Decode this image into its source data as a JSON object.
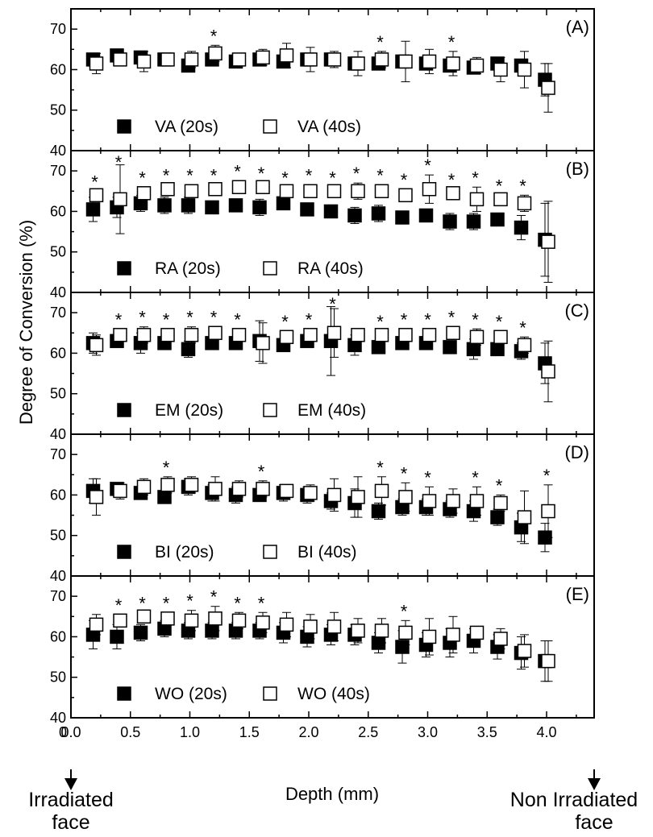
{
  "chart_data": {
    "type": "scatter",
    "ylabel": "Degree of Conversion (%)",
    "xlabel": "Depth (mm)",
    "xlim": [
      0,
      4.4
    ],
    "ylim": [
      40,
      75
    ],
    "x_ticks": [
      "0.0",
      "0.5",
      "1.0",
      "1.5",
      "2.0",
      "2.5",
      "3.0",
      "3.5",
      "4.0"
    ],
    "y_ticks": [
      "40",
      "50",
      "60",
      "70"
    ],
    "x_positions": [
      0.2,
      0.4,
      0.6,
      0.8,
      1.0,
      1.2,
      1.4,
      1.6,
      1.8,
      2.0,
      2.2,
      2.4,
      2.6,
      2.8,
      3.0,
      3.2,
      3.4,
      3.6,
      3.8,
      4.0
    ],
    "annotations": {
      "significance_marker": "*",
      "left_arrow_label": [
        "Irradiated",
        "face"
      ],
      "right_arrow_label": [
        "Non Irradiated",
        "face"
      ]
    },
    "panels": [
      {
        "label": "(A)",
        "series": [
          {
            "name": "VA (20s)",
            "marker": "filled-square",
            "values": [
              62.5,
              63.5,
              63,
              62.5,
              61,
              62.5,
              62,
              62.5,
              62,
              62.5,
              62.5,
              61.5,
              61.5,
              62,
              61.5,
              61,
              60.5,
              61.5,
              61,
              57.5
            ],
            "errors": [
              1.0,
              0.5,
              1.5,
              1.0,
              1.5,
              1.0,
              0.8,
              1.0,
              0.8,
              1.0,
              1.0,
              1.5,
              1.5,
              1.0,
              1.5,
              1.0,
              1.0,
              1.0,
              1.0,
              4.0
            ]
          },
          {
            "name": "VA (40s)",
            "marker": "open-square",
            "values": [
              61.5,
              62.5,
              62,
              62.5,
              62.5,
              64,
              62.5,
              63,
              63.5,
              62.5,
              62.5,
              61.5,
              62.5,
              62,
              62,
              61.5,
              61,
              60,
              60,
              55.5
            ],
            "errors": [
              2.5,
              1.5,
              2.5,
              1.5,
              2.0,
              2.0,
              1.0,
              2.0,
              3.0,
              3.0,
              2.0,
              3.0,
              2.0,
              5.0,
              3.0,
              3.0,
              2.0,
              3.0,
              4.5,
              6.0
            ]
          }
        ],
        "significant_x": [
          1.2,
          2.6,
          3.2
        ]
      },
      {
        "label": "(B)",
        "series": [
          {
            "name": "RA (20s)",
            "marker": "filled-square",
            "values": [
              60.5,
              61,
              62,
              61.5,
              61.5,
              61,
              61.5,
              61,
              62,
              60.5,
              60,
              59,
              59.5,
              58.5,
              59,
              57.5,
              57.5,
              58,
              56,
              53
            ],
            "errors": [
              3.0,
              2.5,
              2.0,
              2.0,
              2.0,
              1.0,
              1.5,
              2.0,
              1.0,
              1.0,
              1.0,
              2.0,
              2.0,
              1.0,
              1.0,
              2.0,
              2.0,
              1.5,
              3.0,
              9.0
            ]
          },
          {
            "name": "RA (40s)",
            "marker": "open-square",
            "values": [
              64,
              63,
              64.5,
              65.5,
              65,
              65.5,
              66,
              66,
              65,
              65,
              65,
              65,
              65,
              64,
              65.5,
              64.5,
              63,
              63,
              62,
              52.5
            ],
            "errors": [
              1.0,
              8.5,
              1.5,
              1.0,
              1.5,
              1.0,
              1.5,
              1.0,
              1.0,
              1.5,
              1.0,
              2.0,
              1.5,
              1.5,
              3.5,
              1.0,
              3.0,
              1.0,
              2.0,
              10.0
            ]
          }
        ],
        "significant_x": [
          0.2,
          0.4,
          0.6,
          0.8,
          1.0,
          1.2,
          1.4,
          1.6,
          1.8,
          2.0,
          2.2,
          2.4,
          2.6,
          2.8,
          3.0,
          3.2,
          3.4,
          3.6,
          3.8
        ]
      },
      {
        "label": "(C)",
        "series": [
          {
            "name": "EM (20s)",
            "marker": "filled-square",
            "values": [
              62.5,
              63,
              62.5,
              62.5,
              61,
              62.5,
              62.5,
              63,
              62,
              63,
              63,
              62,
              61.5,
              62.5,
              62.5,
              61.5,
              61,
              61,
              60.5,
              57.5
            ],
            "errors": [
              2.5,
              1.5,
              2.5,
              1.5,
              2.0,
              1.5,
              1.5,
              5.0,
              1.0,
              1.5,
              8.5,
              2.5,
              1.5,
              1.0,
              1.0,
              1.0,
              2.5,
              1.0,
              2.0,
              5.0
            ]
          },
          {
            "name": "EM (40s)",
            "marker": "open-square",
            "values": [
              62,
              64.5,
              64.5,
              64.5,
              64.5,
              65,
              64.5,
              62.5,
              64,
              64.5,
              65,
              64.5,
              64.5,
              64.5,
              64.5,
              65,
              64,
              64,
              62,
              55.5
            ],
            "errors": [
              2.5,
              1.5,
              2.0,
              1.5,
              2.0,
              1.5,
              1.5,
              5.0,
              1.5,
              1.5,
              6.0,
              1.5,
              1.0,
              1.5,
              1.5,
              1.5,
              2.0,
              1.5,
              2.0,
              7.5
            ]
          }
        ],
        "significant_x": [
          0.4,
          0.6,
          0.8,
          1.0,
          1.2,
          1.4,
          1.8,
          2.0,
          2.2,
          2.6,
          2.8,
          3.0,
          3.2,
          3.4,
          3.6,
          3.8
        ]
      },
      {
        "label": "(D)",
        "series": [
          {
            "name": "BI (20s)",
            "marker": "filled-square",
            "values": [
              61,
              61.5,
              60.5,
              59.5,
              62,
              60.5,
              60,
              60,
              60.5,
              60,
              58.5,
              58,
              56,
              57,
              57,
              56.5,
              56,
              54.5,
              52,
              49.5
            ],
            "errors": [
              3.0,
              1.5,
              1.5,
              1.5,
              2.0,
              2.0,
              2.0,
              1.0,
              2.0,
              2.0,
              2.0,
              3.5,
              2.0,
              2.0,
              2.0,
              2.0,
              2.5,
              2.0,
              3.5,
              3.5
            ]
          },
          {
            "name": "BI (40s)",
            "marker": "open-square",
            "values": [
              59.5,
              61,
              62,
              62.5,
              62.5,
              61.5,
              61.5,
              61.5,
              61,
              60.5,
              60,
              59.5,
              61,
              59.5,
              58.5,
              58.5,
              58.5,
              58,
              54.5,
              56
            ],
            "errors": [
              4.5,
              2.0,
              2.0,
              2.0,
              2.0,
              3.0,
              2.0,
              2.0,
              1.5,
              2.0,
              4.0,
              5.0,
              3.5,
              3.5,
              3.5,
              3.0,
              3.5,
              2.0,
              6.5,
              6.5
            ]
          }
        ],
        "significant_x": [
          0.8,
          1.6,
          2.6,
          2.8,
          3.0,
          3.4,
          3.6,
          4.0
        ]
      },
      {
        "label": "(E)",
        "series": [
          {
            "name": "WO (20s)",
            "marker": "filled-square",
            "values": [
              60.5,
              60,
              61,
              62,
              61.5,
              61.5,
              61.5,
              61.5,
              61,
              60,
              60.5,
              60.5,
              58.5,
              57.5,
              58,
              58.5,
              59,
              57.5,
              56,
              54
            ],
            "errors": [
              3.5,
              3.0,
              2.0,
              2.0,
              2.0,
              2.0,
              2.0,
              2.0,
              2.5,
              2.5,
              2.5,
              2.5,
              2.5,
              4.0,
              3.0,
              3.5,
              3.0,
              3.0,
              4.0,
              5.0
            ]
          },
          {
            "name": "WO (40s)",
            "marker": "open-square",
            "values": [
              63,
              64,
              65,
              64.5,
              64,
              64.5,
              64,
              63.5,
              63,
              62.5,
              62.5,
              61.5,
              61.5,
              61,
              60,
              60.5,
              61,
              59.5,
              56.5,
              54
            ],
            "errors": [
              2.5,
              1.5,
              1.0,
              1.5,
              2.5,
              3.0,
              2.0,
              2.5,
              3.0,
              3.0,
              3.5,
              3.0,
              3.0,
              3.0,
              4.5,
              4.5,
              1.0,
              2.5,
              4.0,
              5.0
            ]
          }
        ],
        "significant_x": [
          0.4,
          0.6,
          0.8,
          1.0,
          1.2,
          1.4,
          1.6,
          2.8
        ]
      }
    ]
  }
}
